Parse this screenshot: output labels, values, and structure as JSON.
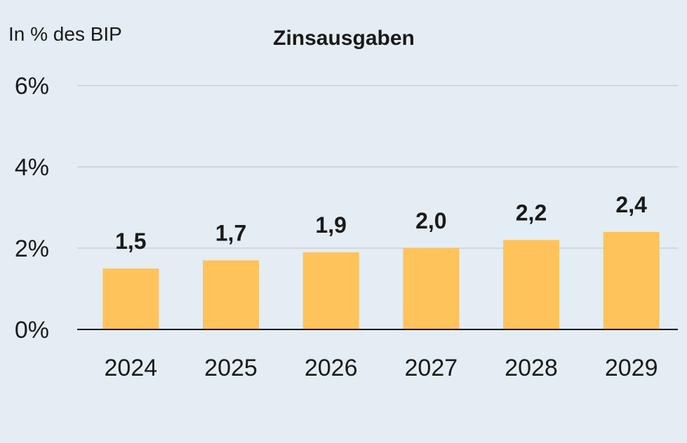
{
  "chart_data": {
    "type": "bar",
    "title": "Zinsausgaben",
    "unit_label": "In % des BIP",
    "categories": [
      "2024",
      "2025",
      "2026",
      "2027",
      "2028",
      "2029"
    ],
    "values": [
      1.5,
      1.7,
      1.9,
      2.0,
      2.2,
      2.4
    ],
    "data_labels": [
      "1,5",
      "1,7",
      "1,9",
      "2,0",
      "2,2",
      "2,4"
    ],
    "yticks": [
      0,
      2,
      4,
      6
    ],
    "ytick_labels": [
      "0%",
      "2%",
      "4%",
      "6%"
    ],
    "ylim": [
      0,
      6
    ],
    "grid": true,
    "colors": {
      "bar": "#ffc35c",
      "grid": "#cfd8df",
      "axis": "#1a1a1a",
      "background": "#e4edf3"
    }
  }
}
